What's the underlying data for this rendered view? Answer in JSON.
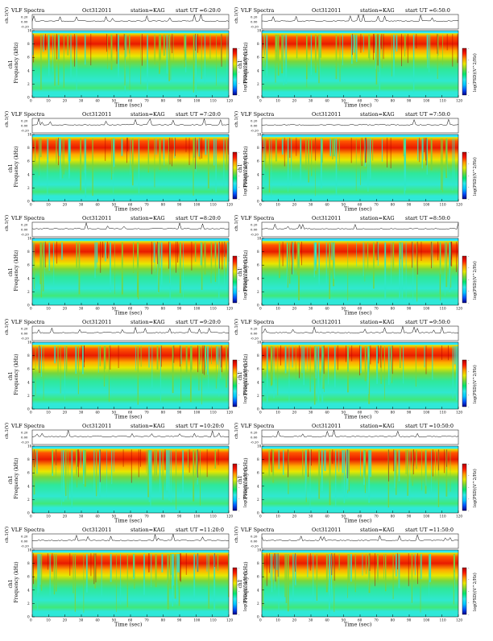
{
  "figure": {
    "title_left": "VLF Spectra",
    "station": "station=KAG",
    "start_prefix": "start UT =",
    "x_axis_label": "Time (sec)",
    "y_top_label": "ch.1(V)",
    "y_spec_label": "Frequency (kHz)",
    "y_spec_channel": "ch1",
    "colorbar_label": "log(PSD)(V^2/Hz)"
  },
  "colors": {
    "spectrogram_scale": [
      "#00008b",
      "#0055ff",
      "#00c8ff",
      "#2fe8e8",
      "#00e66e",
      "#7ad63a",
      "#e8e800",
      "#ff9900",
      "#ff1a00",
      "#b30000"
    ],
    "waveform": "#000000",
    "band_top": "#1ee8ff"
  },
  "panels": [
    {
      "date": "Oct312011",
      "start": "6:20:0"
    },
    {
      "date": "Oct312011",
      "start": "6:50:0"
    },
    {
      "date": "Oct312011",
      "start": "7:20:0"
    },
    {
      "date": "Oct312011",
      "start": "7:50:0"
    },
    {
      "date": "Oct312011",
      "start": "8:20:0"
    },
    {
      "date": "Oct312011",
      "start": "8:50:0"
    },
    {
      "date": "Oct312011",
      "start": "9:20:0"
    },
    {
      "date": "Oct312011",
      "start": "9:50:0"
    },
    {
      "date": "Oct312011",
      "start": "10:20:0"
    },
    {
      "date": "Oct312011",
      "start": "10:50:0"
    },
    {
      "date": "Oct312011",
      "start": "11:20:0"
    },
    {
      "date": "Oct312011",
      "start": "11:50:0"
    }
  ],
  "chart_data": {
    "type": "heatmap",
    "panel_count": 12,
    "x": {
      "label": "Time (sec)",
      "range": [
        0,
        120
      ],
      "ticks": [
        0,
        10,
        20,
        30,
        40,
        50,
        60,
        70,
        80,
        90,
        100,
        110,
        120
      ]
    },
    "y_spectrogram": {
      "label": "Frequency (kHz)",
      "range": [
        0,
        10
      ],
      "ticks": [
        0,
        2,
        4,
        6,
        8,
        10
      ]
    },
    "y_waveform": {
      "label": "ch.1(V)",
      "ticks": [
        "0.20",
        "0.00",
        "-0.20"
      ]
    },
    "colorbar": {
      "label": "log(PSD)(V^2/Hz)",
      "ticks": [
        "-",
        "-",
        "-",
        "-",
        "-"
      ]
    }
  }
}
